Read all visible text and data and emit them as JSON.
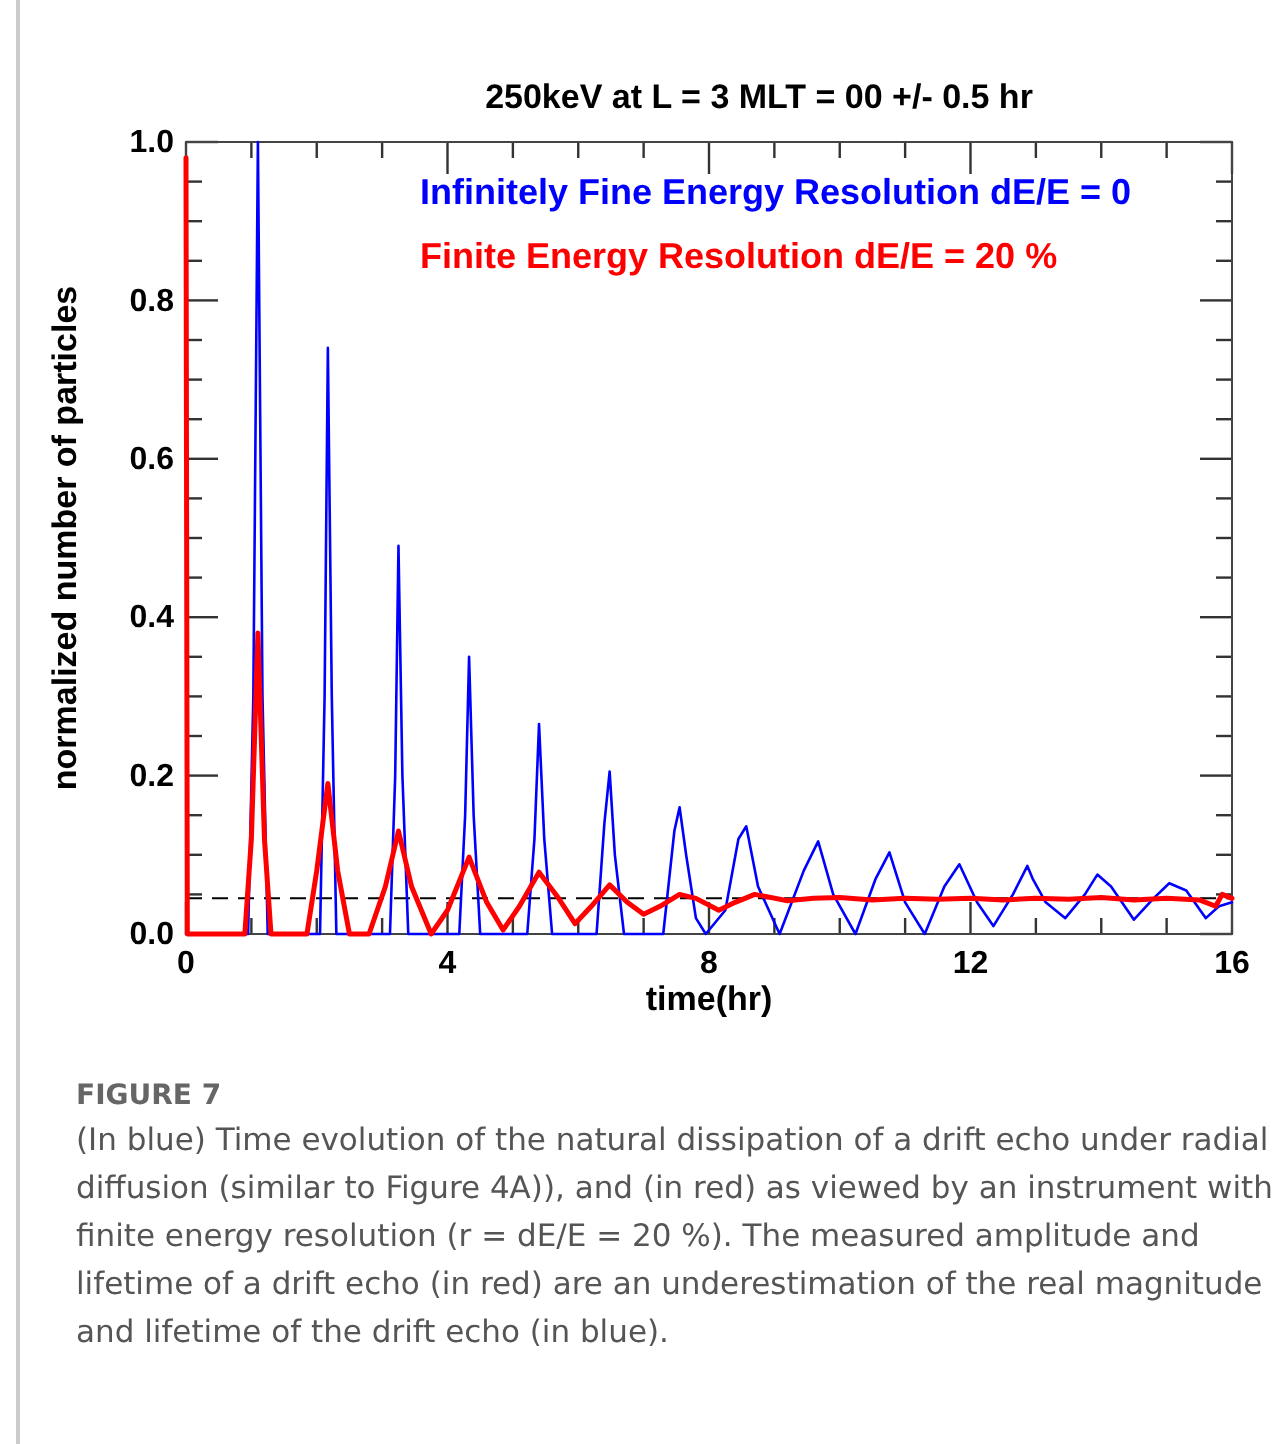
{
  "chart_data": {
    "type": "line",
    "title": "250keV at L = 3 MLT = 00 +/- 0.5 hr",
    "xlabel": "time(hr)",
    "ylabel": "normalized number of particles",
    "xlim": [
      0,
      16
    ],
    "ylim": [
      0,
      1
    ],
    "xticks": [
      0,
      {
        "value": 1,
        "label": null
      },
      {
        "value": 2,
        "label": null
      },
      {
        "value": 3,
        "label": null
      },
      4,
      {
        "value": 5,
        "label": null
      },
      {
        "value": 6,
        "label": null
      },
      {
        "value": 7,
        "label": null
      },
      8,
      {
        "value": 9,
        "label": null
      },
      {
        "value": 10,
        "label": null
      },
      {
        "value": 11,
        "label": null
      },
      12,
      {
        "value": 13,
        "label": null
      },
      {
        "value": 14,
        "label": null
      },
      {
        "value": 15,
        "label": null
      },
      16
    ],
    "yticks": [
      {
        "value": 0,
        "label": "0.0"
      },
      {
        "value": 0.05,
        "label": null
      },
      {
        "value": 0.1,
        "label": null
      },
      {
        "value": 0.15,
        "label": null
      },
      {
        "value": 0.2,
        "label": "0.2"
      },
      {
        "value": 0.25,
        "label": null
      },
      {
        "value": 0.3,
        "label": null
      },
      {
        "value": 0.35,
        "label": null
      },
      {
        "value": 0.4,
        "label": "0.4"
      },
      {
        "value": 0.45,
        "label": null
      },
      {
        "value": 0.5,
        "label": null
      },
      {
        "value": 0.55,
        "label": null
      },
      {
        "value": 0.6,
        "label": "0.6"
      },
      {
        "value": 0.65,
        "label": null
      },
      {
        "value": 0.7,
        "label": null
      },
      {
        "value": 0.75,
        "label": null
      },
      {
        "value": 0.8,
        "label": "0.8"
      },
      {
        "value": 0.85,
        "label": null
      },
      {
        "value": 0.9,
        "label": null
      },
      {
        "value": 0.95,
        "label": null
      },
      {
        "value": 1,
        "label": "1.0"
      }
    ],
    "grid": false,
    "legend": "top",
    "line_style": "solid",
    "ref_lines": [
      {
        "axis": "y",
        "value": 0.045,
        "color": "#000000",
        "line_style": "dashed"
      }
    ],
    "series": [
      {
        "name": "Infinitely Fine Energy Resolution dE/E = 0",
        "color": "#0000ff",
        "x": [
          0,
          0.95,
          1.03,
          1.1,
          1.17,
          1.25,
          2.05,
          2.12,
          2.17,
          2.23,
          2.3,
          3.12,
          3.2,
          3.25,
          3.31,
          3.4,
          4.18,
          4.27,
          4.33,
          4.4,
          4.5,
          5.22,
          5.33,
          5.4,
          5.48,
          5.6,
          6.28,
          6.4,
          6.48,
          6.56,
          6.7,
          7.3,
          7.47,
          7.55,
          7.65,
          7.8,
          7.95,
          8.25,
          8.45,
          8.57,
          8.75,
          9.08,
          9.45,
          9.67,
          9.9,
          10.24,
          10.55,
          10.76,
          11,
          11.3,
          11.6,
          11.83,
          12.1,
          12.35,
          12.65,
          12.87,
          12.95,
          13.15,
          13.45,
          13.75,
          13.94,
          14.15,
          14.5,
          14.8,
          15.04,
          15.3,
          15.6,
          15.8,
          16
        ],
        "values": [
          0,
          0,
          0.3,
          1,
          0.3,
          0,
          0,
          0.3,
          0.74,
          0.3,
          0,
          0,
          0.2,
          0.49,
          0.2,
          0,
          0,
          0.15,
          0.35,
          0.15,
          0,
          0,
          0.12,
          0.265,
          0.12,
          0,
          0,
          0.14,
          0.205,
          0.1,
          0,
          0,
          0.13,
          0.16,
          0.1,
          0.02,
          0,
          0.03,
          0.12,
          0.136,
          0.06,
          0,
          0.08,
          0.117,
          0.05,
          0,
          0.07,
          0.103,
          0.04,
          0,
          0.06,
          0.088,
          0.04,
          0.01,
          0.05,
          0.086,
          0.07,
          0.04,
          0.02,
          0.05,
          0.075,
          0.06,
          0.018,
          0.045,
          0.064,
          0.055,
          0.02,
          0.035,
          0.04
        ]
      },
      {
        "name": "Finite Energy Resolution dE/E = 20 %",
        "color": "#ff0000",
        "x": [
          0,
          0.02,
          0.9,
          1,
          1.1,
          1.2,
          1.3,
          1.85,
          2,
          2.17,
          2.32,
          2.5,
          2.8,
          3.05,
          3.25,
          3.45,
          3.75,
          4,
          4.33,
          4.6,
          4.85,
          5.1,
          5.4,
          5.7,
          5.95,
          6.2,
          6.48,
          6.75,
          7,
          7.25,
          7.55,
          7.8,
          8.15,
          8.4,
          8.7,
          9.2,
          9.6,
          10,
          10.5,
          11,
          11.5,
          12,
          12.5,
          13,
          13.5,
          14,
          14.5,
          15,
          15.5,
          15.75,
          15.85,
          16
        ],
        "values": [
          0.98,
          0,
          0,
          0.12,
          0.38,
          0.12,
          0,
          0,
          0.08,
          0.19,
          0.08,
          0,
          0,
          0.06,
          0.13,
          0.06,
          0,
          0.03,
          0.097,
          0.04,
          0.005,
          0.035,
          0.078,
          0.045,
          0.013,
          0.035,
          0.062,
          0.04,
          0.025,
          0.035,
          0.05,
          0.045,
          0.03,
          0.04,
          0.05,
          0.042,
          0.045,
          0.046,
          0.043,
          0.045,
          0.044,
          0.045,
          0.043,
          0.045,
          0.044,
          0.046,
          0.043,
          0.045,
          0.043,
          0.035,
          0.05,
          0.045
        ]
      }
    ],
    "annotations": [
      "FIGURE 7",
      "(In blue) Time evolution of the natural dissipation of a drift echo under radial diffusion (similar to Figure 4A)), and (in red) as viewed by an instrument with finite energy resolution (r = dE/E = 20 %). The measured amplitude and lifetime of a drift echo (in red) are an underestimation of the real magnitude and lifetime of the drift echo (in blue)."
    ]
  }
}
